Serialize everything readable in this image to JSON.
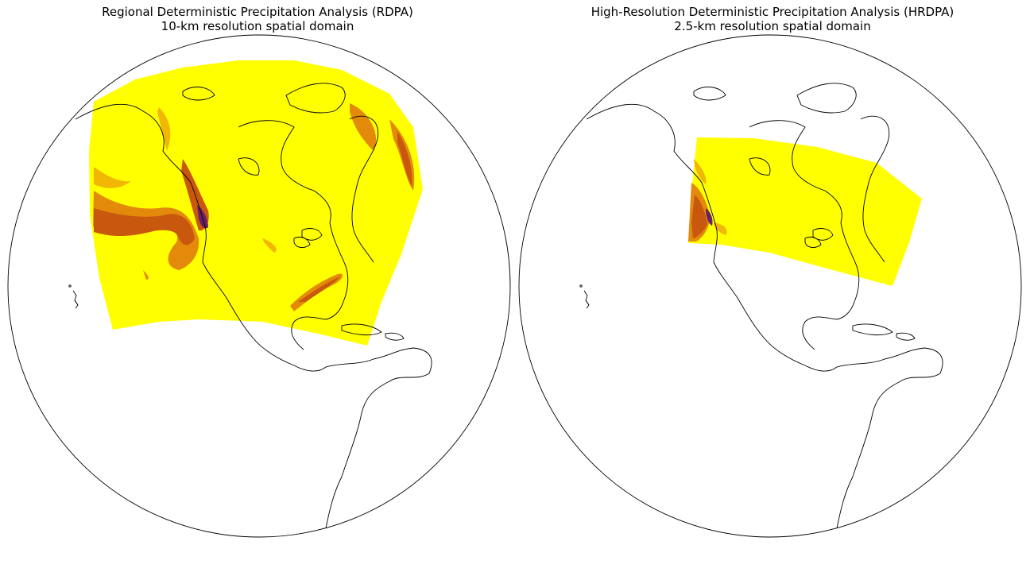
{
  "figure": {
    "panels": [
      {
        "id": "rdpa",
        "title_line1": "Regional Deterministic Precipitation Analysis (RDPA)",
        "title_line2": "10-km resolution spatial domain",
        "colors": {
          "base": "#ffff00",
          "light": "#f2b705",
          "medium": "#e38a0b",
          "dark": "#c9580f",
          "darker": "#a33a12",
          "core": "#6a1f66"
        }
      },
      {
        "id": "hrdpa",
        "title_line1": "High-Resolution Deterministic Precipitation Analysis (HRDPA)",
        "title_line2": "2.5-km resolution spatial domain",
        "colors": {
          "base": "#ffff00",
          "light": "#f2b705",
          "medium": "#e38a0b",
          "dark": "#c9580f",
          "darker": "#a33a12",
          "core": "#6a1f66"
        }
      }
    ]
  }
}
